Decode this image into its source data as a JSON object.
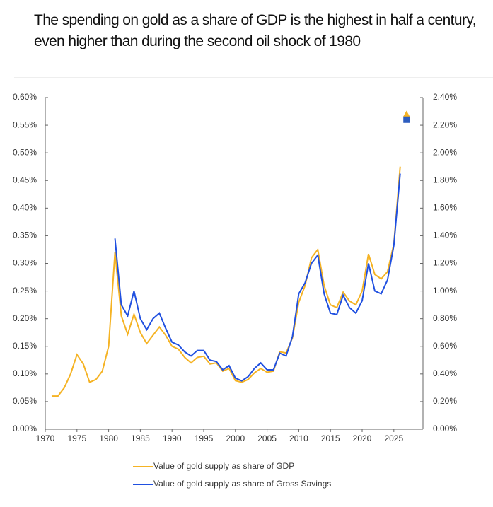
{
  "chart_data": {
    "type": "line",
    "title": "The spending on gold as a share of GDP is the highest in half a century, even higher than during the second oil shock of 1980",
    "x": [
      1971,
      1972,
      1973,
      1974,
      1975,
      1976,
      1977,
      1978,
      1979,
      1980,
      1981,
      1982,
      1983,
      1984,
      1985,
      1986,
      1987,
      1988,
      1989,
      1990,
      1991,
      1992,
      1993,
      1994,
      1995,
      1996,
      1997,
      1998,
      1999,
      2000,
      2001,
      2002,
      2003,
      2004,
      2005,
      2006,
      2007,
      2008,
      2009,
      2010,
      2011,
      2012,
      2013,
      2014,
      2015,
      2016,
      2017,
      2018,
      2019,
      2020,
      2021,
      2022,
      2023,
      2024,
      2025,
      2026
    ],
    "series": [
      {
        "name": "Value of gold supply as share of GDP",
        "color": "#f5b324",
        "axis": "y",
        "values": [
          0.06,
          0.06,
          0.075,
          0.1,
          0.135,
          0.118,
          0.085,
          0.09,
          0.105,
          0.15,
          0.32,
          0.205,
          0.172,
          0.208,
          0.175,
          0.155,
          0.17,
          0.185,
          0.17,
          0.15,
          0.145,
          0.13,
          0.12,
          0.13,
          0.132,
          0.118,
          0.12,
          0.105,
          0.11,
          0.088,
          0.085,
          0.09,
          0.102,
          0.11,
          0.103,
          0.105,
          0.14,
          0.138,
          0.165,
          0.23,
          0.26,
          0.31,
          0.325,
          0.26,
          0.225,
          0.22,
          0.248,
          0.232,
          0.225,
          0.25,
          0.317,
          0.28,
          0.272,
          0.285,
          0.335,
          0.475
        ]
      },
      {
        "name": "Value of gold supply as share of Gross Savings",
        "color": "#2050e0",
        "axis": "y2",
        "values": [
          null,
          null,
          null,
          null,
          null,
          null,
          null,
          null,
          null,
          null,
          1.38,
          0.9,
          0.82,
          1.0,
          0.8,
          0.72,
          0.8,
          0.84,
          0.73,
          0.63,
          0.61,
          0.56,
          0.53,
          0.57,
          0.57,
          0.5,
          0.49,
          0.43,
          0.46,
          0.37,
          0.35,
          0.38,
          0.44,
          0.48,
          0.43,
          0.43,
          0.55,
          0.53,
          0.67,
          0.98,
          1.06,
          1.2,
          1.26,
          0.98,
          0.84,
          0.83,
          0.97,
          0.88,
          0.84,
          0.93,
          1.2,
          1.0,
          0.98,
          1.08,
          1.33,
          1.85
        ]
      }
    ],
    "points": [
      {
        "x": 2027,
        "value": 0.57,
        "axis": "y",
        "color": "#f5b324",
        "shape": "triangle"
      },
      {
        "x": 2027,
        "value": 2.24,
        "axis": "y2",
        "color": "#2d5dbf",
        "shape": "square"
      }
    ],
    "xlim": [
      1970,
      2030
    ],
    "xticks": [
      1970,
      1975,
      1980,
      1985,
      1990,
      1995,
      2000,
      2005,
      2010,
      2015,
      2020,
      2025
    ],
    "ylim": [
      0,
      0.6
    ],
    "yticks": [
      {
        "value": 0,
        "label": "0.00%"
      },
      {
        "value": 0.05,
        "label": "0.05%"
      },
      {
        "value": 0.1,
        "label": "0.10%"
      },
      {
        "value": 0.15,
        "label": "0.15%"
      },
      {
        "value": 0.2,
        "label": "0.20%"
      },
      {
        "value": 0.25,
        "label": "0.25%"
      },
      {
        "value": 0.3,
        "label": "0.30%"
      },
      {
        "value": 0.35,
        "label": "0.35%"
      },
      {
        "value": 0.4,
        "label": "0.40%"
      },
      {
        "value": 0.45,
        "label": "0.45%"
      },
      {
        "value": 0.5,
        "label": "0.50%"
      },
      {
        "value": 0.55,
        "label": "0.55%"
      },
      {
        "value": 0.6,
        "label": "0.60%"
      }
    ],
    "y2lim": [
      0,
      2.4
    ],
    "y2ticks": [
      {
        "value": 0,
        "label": "0.00%"
      },
      {
        "value": 0.2,
        "label": "0.20%"
      },
      {
        "value": 0.4,
        "label": "0.40%"
      },
      {
        "value": 0.6,
        "label": "0.60%"
      },
      {
        "value": 0.8,
        "label": "0.80%"
      },
      {
        "value": 1.0,
        "label": "1.00%"
      },
      {
        "value": 1.2,
        "label": "1.20%"
      },
      {
        "value": 1.4,
        "label": "1.40%"
      },
      {
        "value": 1.6,
        "label": "1.60%"
      },
      {
        "value": 1.8,
        "label": "1.80%"
      },
      {
        "value": 2.0,
        "label": "2.00%"
      },
      {
        "value": 2.2,
        "label": "2.20%"
      },
      {
        "value": 2.4,
        "label": "2.40%"
      }
    ],
    "grid": false,
    "legend": "bottom"
  }
}
